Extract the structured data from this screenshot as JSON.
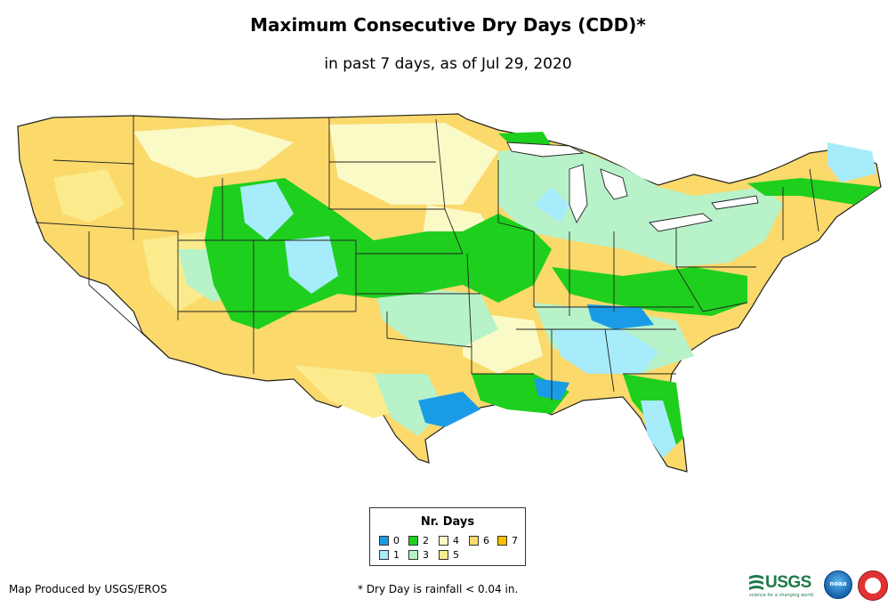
{
  "title": "Maximum Consecutive Dry Days (CDD)*",
  "subtitle": "in past 7 days, as of Jul 29, 2020",
  "legend": {
    "title": "Nr. Days",
    "items": [
      {
        "label": "0",
        "color": "#1a9be6"
      },
      {
        "label": "1",
        "color": "#a6ecfa"
      },
      {
        "label": "2",
        "color": "#1ecf1e"
      },
      {
        "label": "3",
        "color": "#b8f2c9"
      },
      {
        "label": "4",
        "color": "#fafac6"
      },
      {
        "label": "5",
        "color": "#fbeb8c"
      },
      {
        "label": "6",
        "color": "#fbd96b"
      },
      {
        "label": "7",
        "color": "#f8c000"
      }
    ]
  },
  "credit": "Map Produced by USGS/EROS",
  "footnote": "* Dry Day is rainfall < 0.04 in.",
  "logos": {
    "usgs": "USGS",
    "usgs_tagline": "science for a changing world",
    "noaa": "noaa",
    "nws_icon": "nws-logo-icon"
  }
}
